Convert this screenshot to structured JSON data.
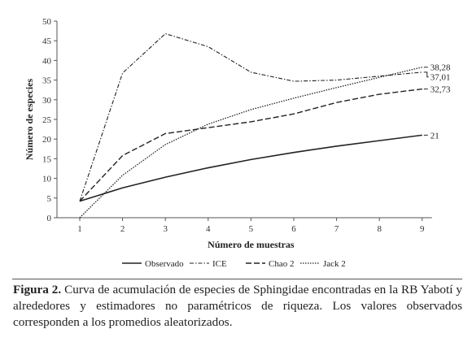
{
  "chart_data": {
    "type": "line",
    "xlabel": "Número de muestras",
    "ylabel": "Número de especies",
    "x": [
      1,
      2,
      3,
      4,
      5,
      6,
      7,
      8,
      9
    ],
    "xlim": [
      1,
      9
    ],
    "ylim": [
      0,
      50
    ],
    "yticks": [
      0,
      5,
      10,
      15,
      20,
      25,
      30,
      35,
      40,
      45,
      50
    ],
    "grid": false,
    "legend_position": "bottom",
    "series": [
      {
        "name": "Observado",
        "style": "solid",
        "values": [
          4.2,
          7.6,
          10.3,
          12.7,
          14.8,
          16.6,
          18.2,
          19.6,
          21
        ],
        "end_label": "21"
      },
      {
        "name": "ICE",
        "style": "dashdot",
        "values": [
          4.2,
          36.8,
          46.8,
          43.5,
          37.0,
          34.7,
          35.0,
          36.0,
          37.01
        ],
        "end_label": "37,01"
      },
      {
        "name": "Chao 2",
        "style": "dash",
        "values": [
          4.2,
          15.8,
          21.4,
          22.9,
          24.4,
          26.4,
          29.3,
          31.4,
          32.73
        ],
        "end_label": "32,73"
      },
      {
        "name": "Jack 2",
        "style": "dotted",
        "values": [
          0,
          10.8,
          18.6,
          23.8,
          27.5,
          30.4,
          33.1,
          35.7,
          38.28
        ],
        "end_label": "38,28"
      }
    ]
  },
  "caption": {
    "label": "Figura 2.",
    "text": "Curva de acumulación de especies de Sphingidae encontradas en la RB Yabotí y alrededores y estimadores no paramétricos de riqueza. Los valores observados corresponden a los promedios aleatorizados."
  }
}
